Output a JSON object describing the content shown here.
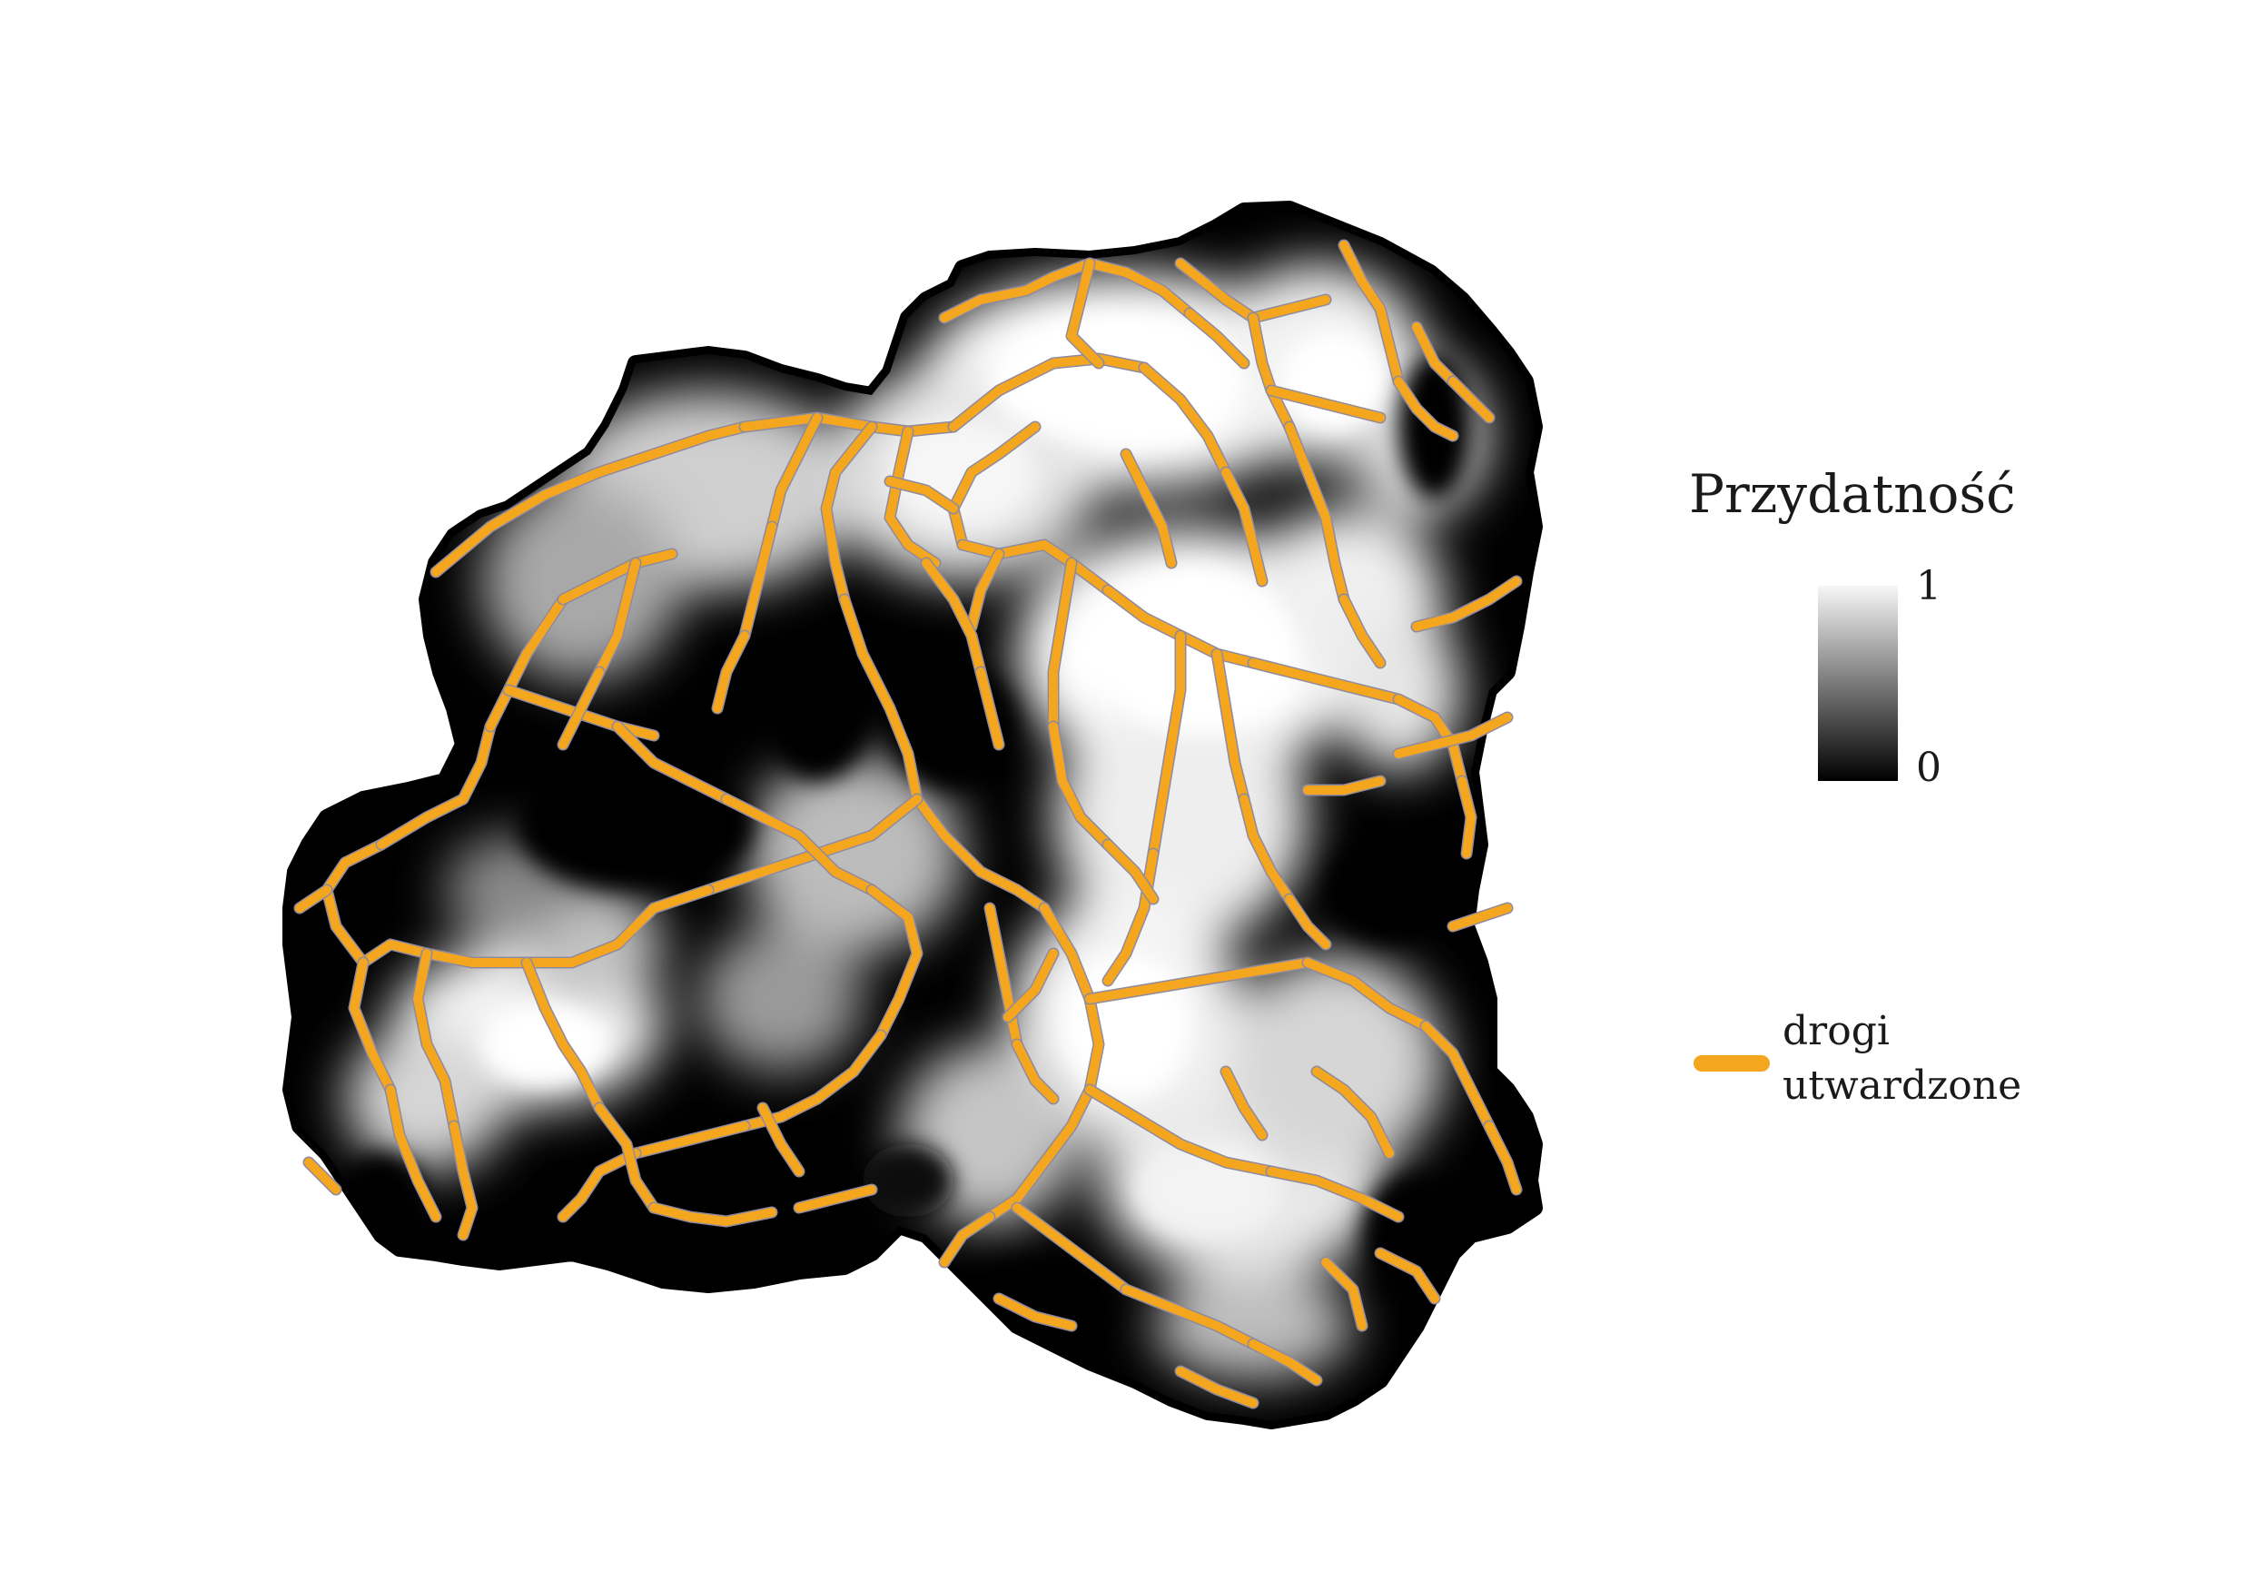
{
  "legend": {
    "suitability_title": "Przydatność",
    "ramp_max_label": "1",
    "ramp_min_label": "0",
    "ramp_top_color": "#f7f7f7",
    "ramp_bottom_color": "#000000",
    "roads_label_line1": "drogi",
    "roads_label_line2": "utwardzone"
  },
  "colors": {
    "roads": "#f4a61f",
    "road_edge": "#8e8aa0",
    "boundary": "#000000",
    "low_suitability": "#000000",
    "high_suitability": "#ffffff"
  }
}
